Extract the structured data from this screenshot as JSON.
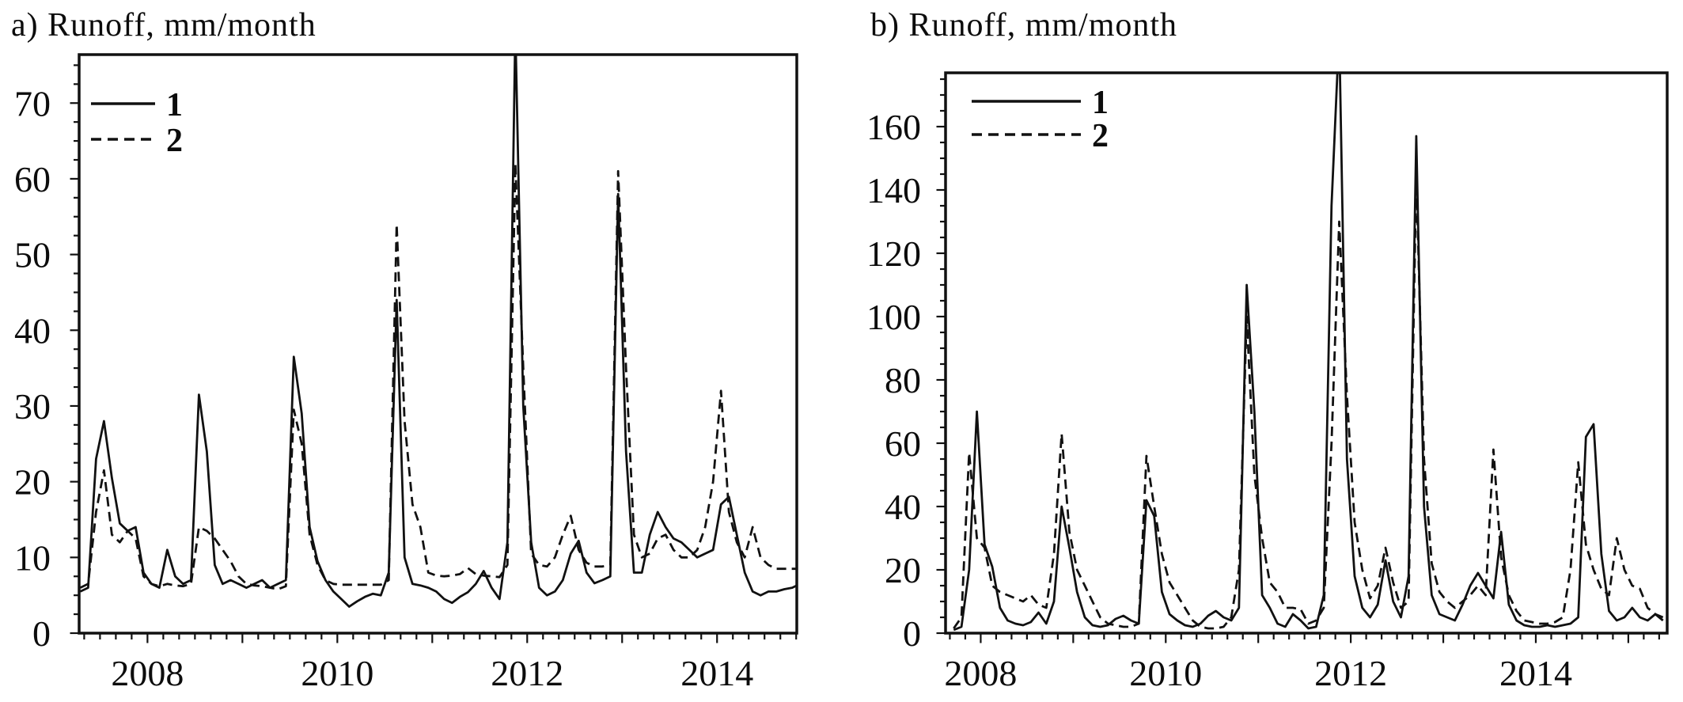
{
  "figure": {
    "background": "#ffffff",
    "line_color": "#111111",
    "panels": [
      "a",
      "b"
    ]
  },
  "chart_data": [
    {
      "type": "line",
      "panel": "a",
      "title": "a) Runoff, mm/month",
      "ylabel": "Runoff, mm/month",
      "x_start_year": 2007,
      "x_start_month": 4,
      "xlim": [
        2007.28,
        2014.84
      ],
      "ylim": [
        0,
        76.4
      ],
      "y_major": 10,
      "y_minor": 2.5,
      "y_tick_labels": [
        "0",
        "10",
        "20",
        "30",
        "40",
        "50",
        "60",
        "70"
      ],
      "x_tick_labels": [
        "2008",
        "2010",
        "2012",
        "2014"
      ],
      "x_minor_per_year": 6,
      "grid": false,
      "legend_position": "top-left",
      "legend": [
        {
          "label": "1",
          "style": "solid"
        },
        {
          "label": "2",
          "style": "dashed"
        }
      ],
      "series": [
        {
          "name": "1",
          "style": "solid",
          "values": [
            5.5,
            6,
            23,
            28,
            20.5,
            14.5,
            13.5,
            14,
            8,
            6.5,
            6,
            11,
            7.5,
            6.5,
            7,
            31.5,
            24,
            9,
            6.5,
            7,
            6.5,
            6,
            6.5,
            7,
            6,
            6.5,
            7,
            36.5,
            29,
            14,
            9.5,
            7,
            5.5,
            4.5,
            3.5,
            4.2,
            4.8,
            5.2,
            5,
            8,
            44,
            10,
            6.5,
            6.3,
            6,
            5.5,
            4.5,
            4,
            4.8,
            5.4,
            6.5,
            8.2,
            6,
            4.5,
            12,
            80,
            30,
            12,
            6,
            5,
            5.5,
            7,
            10.5,
            12.2,
            8,
            6.6,
            7,
            7.5,
            58,
            24,
            8,
            8,
            13,
            16,
            14,
            12.5,
            12,
            11,
            10,
            10.5,
            11,
            17,
            18,
            13,
            8,
            5.5,
            5,
            5.5,
            5.5,
            5.8,
            6,
            6.5
          ]
        },
        {
          "name": "2",
          "style": "dashed",
          "values": [
            6,
            6.5,
            16,
            21.5,
            13,
            12,
            13.5,
            12.5,
            7.5,
            6.5,
            6.2,
            6.5,
            6.3,
            6.2,
            6.5,
            14,
            13.5,
            12.5,
            11,
            9.5,
            7.5,
            6.5,
            6.3,
            6.2,
            6,
            5.8,
            6.2,
            29.5,
            25,
            13,
            9,
            7,
            6.5,
            6.4,
            6.4,
            6.4,
            6.4,
            6.4,
            6.4,
            7,
            54,
            28,
            17,
            14,
            8,
            7.6,
            7.5,
            7.6,
            7.8,
            8.6,
            7.8,
            7.6,
            7.5,
            7.4,
            9,
            62,
            35,
            10.5,
            9,
            8.8,
            10,
            13,
            15.5,
            11,
            9.3,
            8.8,
            8.8,
            9,
            61,
            35,
            13,
            10,
            10.5,
            12.5,
            13,
            11,
            10,
            10,
            11,
            14,
            20,
            32,
            16,
            12,
            10,
            14,
            10,
            9,
            8.5,
            8.5,
            8.5,
            8.5
          ]
        }
      ]
    },
    {
      "type": "line",
      "panel": "b",
      "title": "b) Runoff, mm/month",
      "ylabel": "Runoff, mm/month",
      "x_start_year": 2007,
      "x_start_month": 9,
      "xlim": [
        2007.62,
        2015.42
      ],
      "ylim": [
        0,
        177
      ],
      "y_major": 20,
      "y_minor": 5,
      "y_tick_labels": [
        "0",
        "20",
        "40",
        "60",
        "80",
        "100",
        "120",
        "140",
        "160"
      ],
      "x_tick_labels": [
        "2008",
        "2010",
        "2012",
        "2014"
      ],
      "x_minor_per_year": 6,
      "grid": false,
      "legend_position": "top-left",
      "legend": [
        {
          "label": "1",
          "style": "solid"
        },
        {
          "label": "2",
          "style": "dashed"
        }
      ],
      "series": [
        {
          "name": "1",
          "style": "solid",
          "values": [
            1,
            2,
            20,
            70,
            28,
            21,
            8,
            4,
            3,
            2.5,
            3.5,
            6.5,
            3,
            10,
            40,
            27,
            13,
            5,
            2.5,
            2,
            2.5,
            4.5,
            5.5,
            4,
            3,
            42,
            37,
            13,
            6,
            4,
            2.5,
            2,
            3,
            5.5,
            7,
            5,
            4,
            8,
            110,
            70,
            12,
            8,
            3,
            2,
            6,
            4,
            1.5,
            2,
            12,
            135,
            190,
            55,
            18,
            8,
            5,
            9,
            23,
            10,
            5,
            18,
            157,
            40,
            12,
            6,
            5,
            4,
            9,
            15,
            19,
            15,
            11,
            32,
            9,
            4,
            2.5,
            2,
            2,
            2.5,
            2,
            2.5,
            3,
            5,
            62,
            66,
            25,
            7,
            4,
            5,
            8,
            5,
            4,
            6,
            4
          ]
        },
        {
          "name": "2",
          "style": "dashed",
          "values": [
            1.5,
            5,
            57,
            30,
            27,
            15,
            13,
            12,
            11,
            10,
            12,
            9,
            8,
            25,
            63,
            32,
            20,
            15,
            10,
            5,
            3,
            2.5,
            2,
            2,
            3,
            56,
            40,
            25,
            16,
            12,
            8,
            4,
            2,
            1.5,
            1.5,
            2,
            5,
            20,
            100,
            50,
            30,
            16,
            13,
            8,
            8,
            7.5,
            3,
            4,
            8,
            60,
            130,
            75,
            35,
            20,
            11,
            15,
            27,
            16,
            8,
            10,
            145,
            55,
            22,
            13,
            10,
            8,
            10,
            12,
            15,
            12,
            58,
            24,
            12,
            7,
            4,
            3.5,
            3,
            3,
            3.5,
            5,
            20,
            54,
            28,
            20,
            14,
            12,
            30,
            20,
            15,
            14,
            8,
            6,
            5
          ]
        }
      ]
    }
  ]
}
